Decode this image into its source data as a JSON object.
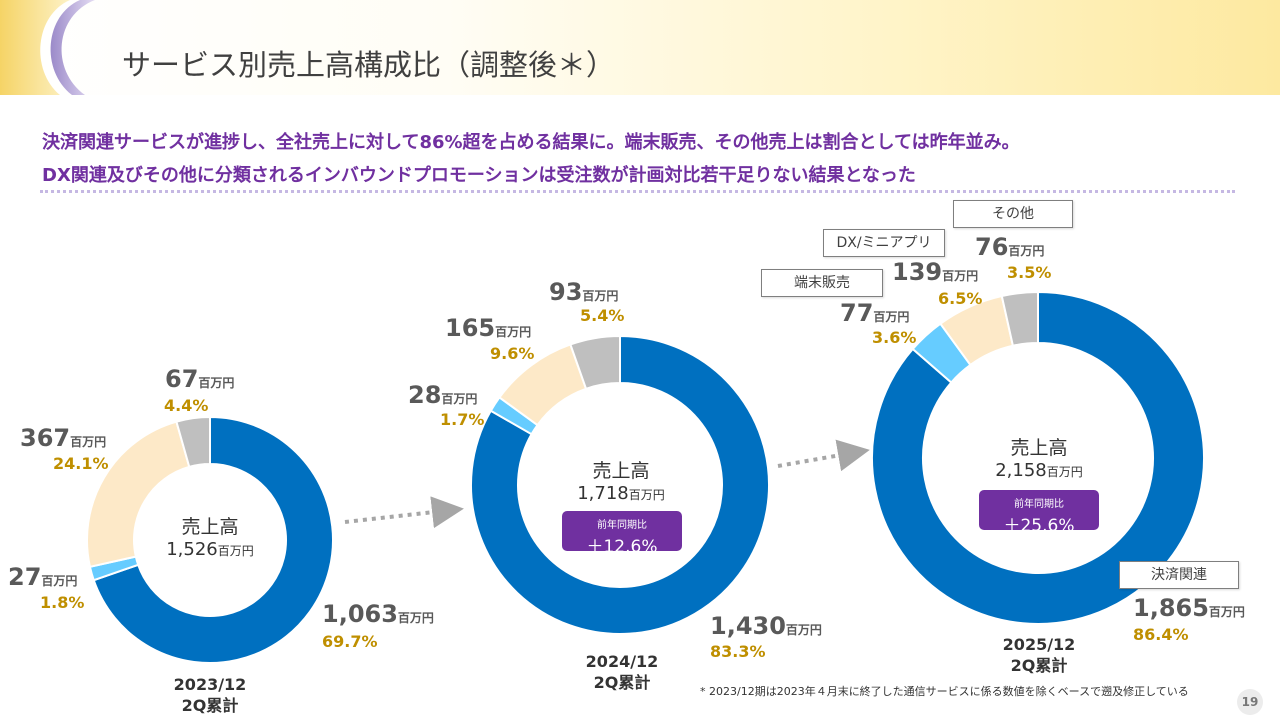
{
  "title": "サービス別売上高構成比（調整後＊）",
  "headline": [
    "決済関連サービスが進捗し、全社売上に対して86%超を占める結果に。端末販売、その他売上は割合としては昨年並み。",
    "DX関連及びその他に分類されるインバウンドプロモーションは受注数が計画対比若干足りない結果となった"
  ],
  "unit": "百万円",
  "center_title": "売上高",
  "growth_label": "前年同期比",
  "callouts": {
    "other": "その他",
    "dx": "DX/ミニアプリ",
    "terminal": "端末販売",
    "payment": "決済関連"
  },
  "footnote": "* 2023/12期は2023年４月末に終了した通信サービスに係る数値を除くベースで遡及修正している",
  "page_number": "19",
  "colors": {
    "payment": "#0070c0",
    "terminal": "#66ccff",
    "dx": "#fde9c8",
    "other": "#bfbfbf",
    "accent": "#7030a0",
    "pct": "#bf8f00"
  },
  "chart_data": [
    {
      "type": "pie",
      "donut": true,
      "period": [
        "2023/12",
        "2Q累計"
      ],
      "total": "1,526",
      "growth": "",
      "slices": [
        {
          "category": "決済関連",
          "value": "1,063",
          "percent": 69.7,
          "pct_label": "69.7%"
        },
        {
          "category": "端末販売",
          "value": "27",
          "percent": 1.8,
          "pct_label": "1.8%"
        },
        {
          "category": "DX/ミニアプリ",
          "value": "367",
          "percent": 24.1,
          "pct_label": "24.1%"
        },
        {
          "category": "その他",
          "value": "67",
          "percent": 4.4,
          "pct_label": "4.4%"
        }
      ]
    },
    {
      "type": "pie",
      "donut": true,
      "period": [
        "2024/12",
        "2Q累計"
      ],
      "total": "1,718",
      "growth": "＋12.6%",
      "slices": [
        {
          "category": "決済関連",
          "value": "1,430",
          "percent": 83.3,
          "pct_label": "83.3%"
        },
        {
          "category": "端末販売",
          "value": "28",
          "percent": 1.7,
          "pct_label": "1.7%"
        },
        {
          "category": "DX/ミニアプリ",
          "value": "165",
          "percent": 9.6,
          "pct_label": "9.6%"
        },
        {
          "category": "その他",
          "value": "93",
          "percent": 5.4,
          "pct_label": "5.4%"
        }
      ]
    },
    {
      "type": "pie",
      "donut": true,
      "period": [
        "2025/12",
        "2Q累計"
      ],
      "total": "2,158",
      "growth": "＋25.6%",
      "slices": [
        {
          "category": "決済関連",
          "value": "1,865",
          "percent": 86.4,
          "pct_label": "86.4%"
        },
        {
          "category": "端末販売",
          "value": "77",
          "percent": 3.6,
          "pct_label": "3.6%"
        },
        {
          "category": "DX/ミニアプリ",
          "value": "139",
          "percent": 6.5,
          "pct_label": "6.5%"
        },
        {
          "category": "その他",
          "value": "76",
          "percent": 3.5,
          "pct_label": "3.5%"
        }
      ]
    }
  ]
}
